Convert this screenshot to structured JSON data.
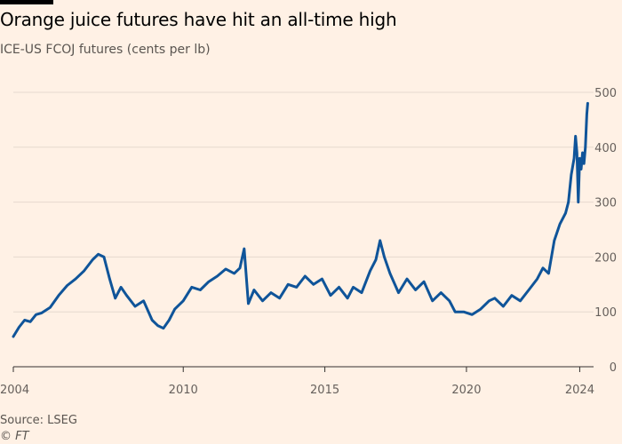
{
  "header": {
    "title": "Orange juice futures have hit an all-time high",
    "subtitle": "ICE-US FCOJ futures (cents per lb)"
  },
  "footer": {
    "source": "Source: LSEG",
    "credit": "© FT"
  },
  "colors": {
    "background": "#FFF1E5",
    "line": "#0F5499",
    "grid": "#E6D9CE",
    "axis": "#66605C"
  },
  "chart_data": {
    "type": "line",
    "title": "Orange juice futures have hit an all-time high",
    "subtitle": "ICE-US FCOJ futures (cents per lb)",
    "xlabel": "",
    "ylabel": "cents per lb",
    "xlim": [
      2004,
      2024.3
    ],
    "ylim": [
      0,
      500
    ],
    "x_ticks": [
      2004,
      2010,
      2015,
      2020,
      2024
    ],
    "x_tick_labels": [
      "2004",
      "2010",
      "2015",
      "2020",
      "2024"
    ],
    "y_ticks": [
      0,
      100,
      200,
      300,
      400,
      500
    ],
    "y_tick_labels": [
      "0",
      "100",
      "200",
      "300",
      "400",
      "500"
    ],
    "grid": true,
    "series": [
      {
        "name": "ICE-US FCOJ futures",
        "x": [
          2004.0,
          2004.2,
          2004.4,
          2004.6,
          2004.8,
          2005.0,
          2005.3,
          2005.6,
          2005.9,
          2006.2,
          2006.5,
          2006.8,
          2007.0,
          2007.2,
          2007.4,
          2007.6,
          2007.8,
          2008.0,
          2008.3,
          2008.6,
          2008.9,
          2009.1,
          2009.3,
          2009.5,
          2009.7,
          2010.0,
          2010.3,
          2010.6,
          2010.9,
          2011.2,
          2011.5,
          2011.8,
          2012.0,
          2012.15,
          2012.3,
          2012.5,
          2012.8,
          2013.1,
          2013.4,
          2013.7,
          2014.0,
          2014.3,
          2014.6,
          2014.9,
          2015.2,
          2015.5,
          2015.8,
          2016.0,
          2016.3,
          2016.6,
          2016.8,
          2016.95,
          2017.1,
          2017.3,
          2017.6,
          2017.9,
          2018.2,
          2018.5,
          2018.8,
          2019.1,
          2019.4,
          2019.6,
          2019.9,
          2020.2,
          2020.5,
          2020.8,
          2021.0,
          2021.3,
          2021.6,
          2021.9,
          2022.2,
          2022.5,
          2022.7,
          2022.9,
          2023.1,
          2023.3,
          2023.5,
          2023.6,
          2023.7,
          2023.8,
          2023.85,
          2023.9,
          2023.95,
          2024.0,
          2024.05,
          2024.1,
          2024.15,
          2024.2,
          2024.25,
          2024.28
        ],
        "values": [
          55,
          72,
          85,
          82,
          95,
          98,
          108,
          130,
          148,
          160,
          175,
          195,
          205,
          200,
          160,
          125,
          145,
          130,
          110,
          120,
          85,
          75,
          70,
          85,
          105,
          120,
          145,
          140,
          155,
          165,
          178,
          170,
          180,
          215,
          115,
          140,
          120,
          135,
          125,
          150,
          145,
          165,
          150,
          160,
          130,
          145,
          125,
          145,
          135,
          175,
          195,
          230,
          200,
          170,
          135,
          160,
          140,
          155,
          120,
          135,
          120,
          100,
          100,
          95,
          105,
          120,
          125,
          110,
          130,
          120,
          140,
          160,
          180,
          170,
          230,
          260,
          280,
          300,
          350,
          380,
          420,
          390,
          300,
          380,
          360,
          390,
          370,
          400,
          460,
          480
        ]
      }
    ]
  }
}
